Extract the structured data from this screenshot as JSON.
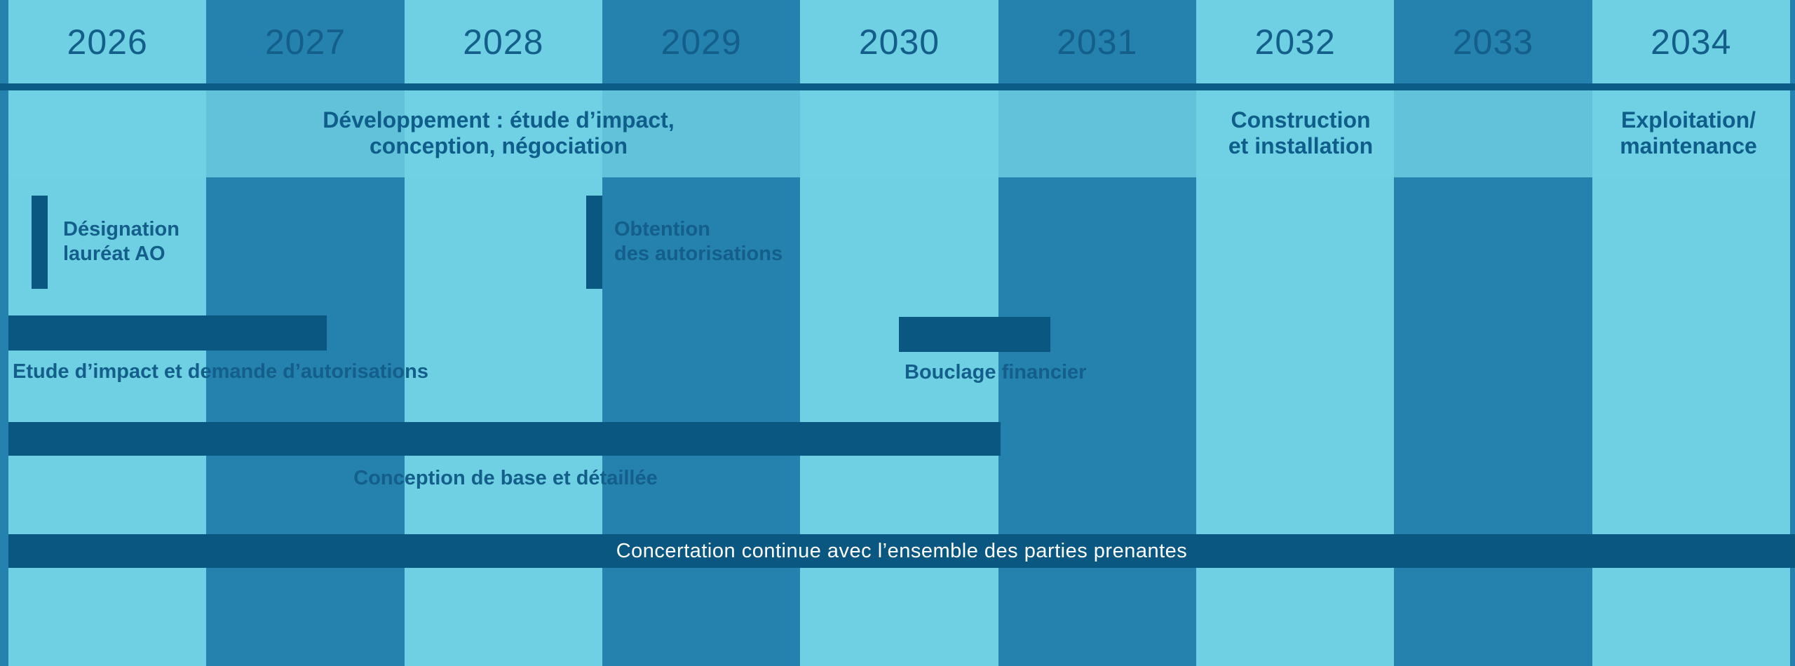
{
  "chart_data": {
    "type": "gantt",
    "unit": "year",
    "x_domain": [
      2026,
      2035
    ],
    "grid": "alternating-year-columns",
    "legend": "none",
    "years": [
      "2026",
      "2027",
      "2028",
      "2029",
      "2030",
      "2031",
      "2032",
      "2033",
      "2034"
    ],
    "phases": [
      {
        "label": "Développement : étude d’impact,\nconception, négociation",
        "start": 2026,
        "end": 2031
      },
      {
        "label": "Construction\net installation",
        "start": 2031,
        "end": 2034
      },
      {
        "label": "Exploitation/\nmaintenance",
        "start": 2034,
        "end": 2035
      }
    ],
    "milestones": [
      {
        "label": "Désignation\nlauréat AO",
        "year": 2026.2
      },
      {
        "label": "Obtention\ndes autorisations",
        "year": 2029.0
      }
    ],
    "tasks": [
      {
        "label": "Etude d’impact et demande d’autorisations",
        "start": 2026.0,
        "end": 2027.6
      },
      {
        "label": "Bouclage financier",
        "start": 2030.5,
        "end": 2031.3
      },
      {
        "label": "Conception de base et détaillée",
        "start": 2026.0,
        "end": 2031.0
      },
      {
        "label": "Concertation continue avec l’ensemble des parties prenantes",
        "start": 2026.0,
        "end": 2035.0
      }
    ],
    "colors": {
      "column_light": "#6FD0E3",
      "column_dark": "#2581AD",
      "band_tint_light": "#71D1E4",
      "band_tint_dark": "#62C2D9",
      "bar": "#0A5781",
      "rule": "#0B5C86",
      "text_dark_blue": "#135E8A",
      "text_phase": "#0E5D8A",
      "text_white": "#FFFFFF"
    }
  }
}
